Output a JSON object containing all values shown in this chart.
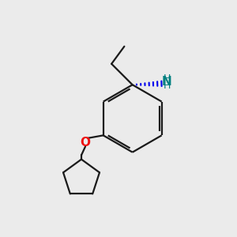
{
  "background_color": "#ebebeb",
  "bond_color": "#1a1a1a",
  "oxygen_color": "#ee1111",
  "nh2_color": "#008080",
  "wedge_color": "#0000ee",
  "figsize": [
    3.0,
    3.0
  ],
  "dpi": 100,
  "xlim": [
    0,
    10
  ],
  "ylim": [
    0,
    10
  ]
}
